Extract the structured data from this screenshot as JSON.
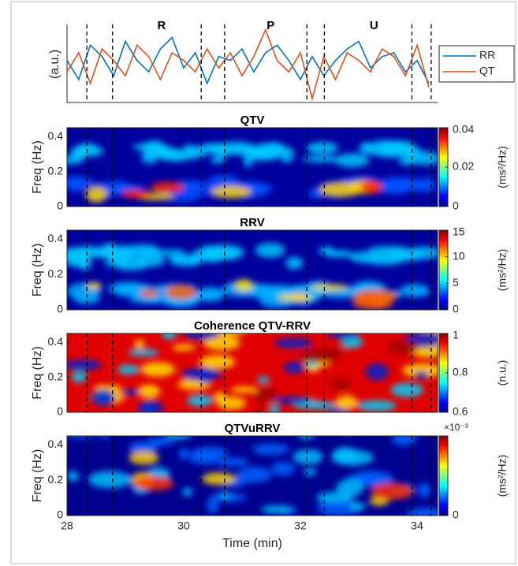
{
  "chart_data": [
    {
      "type": "line",
      "ylabel": "(a.u.)",
      "xlim": [
        28,
        34.35
      ],
      "ylim": [
        -1,
        1
      ],
      "x": [
        28.0,
        28.2,
        28.4,
        28.6,
        28.8,
        29.0,
        29.2,
        29.4,
        29.6,
        29.8,
        30.0,
        30.2,
        30.4,
        30.6,
        30.8,
        31.0,
        31.2,
        31.4,
        31.6,
        31.8,
        32.0,
        32.2,
        32.4,
        32.6,
        32.8,
        33.0,
        33.2,
        33.4,
        33.6,
        33.8,
        34.0,
        34.2
      ],
      "series": [
        {
          "name": "RR",
          "color": "#0072bd",
          "values": [
            0.1,
            -0.4,
            0.5,
            0.2,
            -0.3,
            0.6,
            0.1,
            -0.2,
            0.4,
            0.7,
            -0.1,
            0.3,
            -0.5,
            0.2,
            0.1,
            0.4,
            -0.2,
            0.3,
            0.5,
            0.1,
            -0.4,
            0.2,
            -0.3,
            0.1,
            0.4,
            0.6,
            -0.1,
            0.2,
            0.3,
            -0.2,
            0.1,
            -0.5
          ]
        },
        {
          "name": "QT",
          "color": "#d95319",
          "values": [
            -0.2,
            0.3,
            -0.5,
            0.4,
            0.1,
            -0.3,
            0.5,
            0.2,
            -0.4,
            0.3,
            0.1,
            -0.2,
            0.4,
            -0.1,
            0.3,
            -0.3,
            0.2,
            0.9,
            0.1,
            -0.2,
            0.3,
            -0.9,
            0.2,
            -0.4,
            0.3,
            0.1,
            -0.2,
            0.4,
            0.2,
            -0.3,
            0.5,
            -0.6
          ]
        }
      ],
      "events": [
        28.34,
        28.78,
        30.3,
        30.7,
        32.11,
        32.41,
        33.91,
        34.24
      ],
      "annotations": [
        {
          "text": "R",
          "x": 29.62
        },
        {
          "text": "P",
          "x": 31.49
        },
        {
          "text": "U",
          "x": 33.26
        }
      ]
    },
    {
      "type": "heatmap",
      "title": "QTV",
      "ylabel": "Freq (Hz)",
      "xlim": [
        28,
        34.35
      ],
      "ylim": [
        0,
        0.45
      ],
      "yticks": [
        0,
        0.2,
        0.4
      ],
      "colorbar": {
        "label": "(ms²/Hz)",
        "lim": [
          0,
          0.04
        ],
        "ticks": [
          0,
          0.02,
          0.04
        ]
      }
    },
    {
      "type": "heatmap",
      "title": "RRV",
      "ylabel": "Freq (Hz)",
      "xlim": [
        28,
        34.35
      ],
      "ylim": [
        0,
        0.45
      ],
      "yticks": [
        0,
        0.2,
        0.4
      ],
      "colorbar": {
        "label": "(ms²/Hz)",
        "lim": [
          0,
          15
        ],
        "ticks": [
          0,
          5,
          10,
          15
        ]
      }
    },
    {
      "type": "heatmap",
      "title": "Coherence QTV-RRV",
      "ylabel": "Freq (Hz)",
      "xlim": [
        28,
        34.35
      ],
      "ylim": [
        0,
        0.45
      ],
      "yticks": [
        0,
        0.2,
        0.4
      ],
      "colorbar": {
        "label": "(n.u.)",
        "lim": [
          0.6,
          1
        ],
        "ticks": [
          0.6,
          0.8,
          1
        ]
      }
    },
    {
      "type": "heatmap",
      "title": "QTVuRRV",
      "ylabel": "Freq (Hz)",
      "xlabel": "Time (min)",
      "xlim": [
        28,
        34.35
      ],
      "ylim": [
        0,
        0.45
      ],
      "yticks": [
        0,
        0.2,
        0.4
      ],
      "xticks": [
        28,
        30,
        32,
        34
      ],
      "colorbar": {
        "label": "(ms²/Hz)",
        "lim": [
          0,
          0.001
        ],
        "ticks": [
          0
        ],
        "exponent": "×10⁻³"
      }
    }
  ]
}
